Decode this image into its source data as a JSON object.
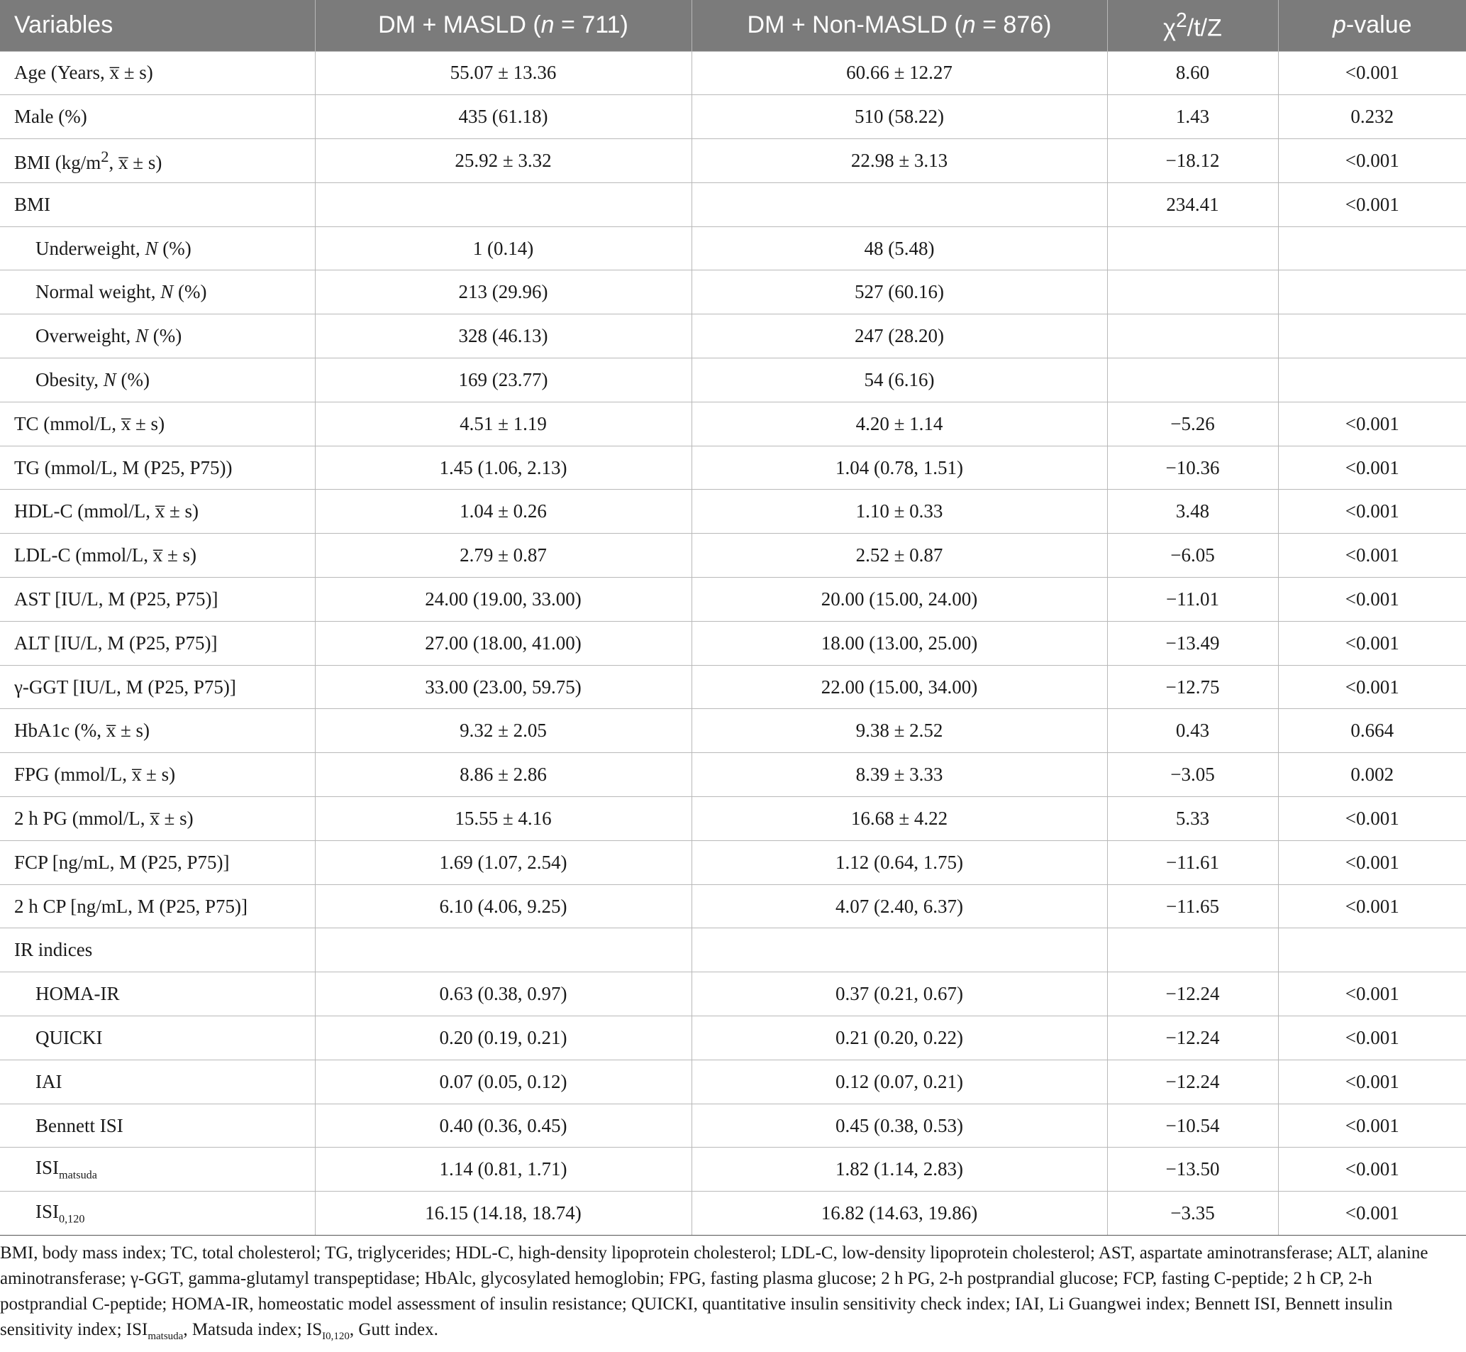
{
  "table": {
    "headers": {
      "variables": "Variables",
      "group1_prefix": "DM + MASLD (",
      "group1_n": "n",
      "group1_suffix": " = 711)",
      "group2_prefix": "DM + Non-MASLD (",
      "group2_n": "n",
      "group2_suffix": " = 876)",
      "stat_chi": "χ",
      "stat_sup": "2",
      "stat_rest": "/t/Z",
      "pvalue_p": "p",
      "pvalue_rest": "-value"
    },
    "rows": {
      "age": {
        "label": "Age (Years, x̅ ± s)",
        "masld": "55.07 ± 13.36",
        "non_masld": "60.66 ± 12.27",
        "stat": "8.60",
        "p": "<0.001"
      },
      "male": {
        "label": "Male (%)",
        "masld": "435 (61.18)",
        "non_masld": "510 (58.22)",
        "stat": "1.43",
        "p": "0.232"
      },
      "bmi_mean": {
        "label_pre": "BMI (kg/m",
        "label_sup": "2",
        "label_post": ", x̅ ± s)",
        "masld": "25.92 ± 3.32",
        "non_masld": "22.98 ± 3.13",
        "stat": "−18.12",
        "p": "<0.001"
      },
      "bmi_cat": {
        "label": "BMI",
        "masld": "",
        "non_masld": "",
        "stat": "234.41",
        "p": "<0.001"
      },
      "underweight": {
        "label_pre": "Underweight, ",
        "label_it": "N",
        "label_post": " (%)",
        "masld": "1 (0.14)",
        "non_masld": "48 (5.48)",
        "stat": "",
        "p": ""
      },
      "normal": {
        "label_pre": "Normal weight, ",
        "label_it": "N",
        "label_post": " (%)",
        "masld": "213 (29.96)",
        "non_masld": "527 (60.16)",
        "stat": "",
        "p": ""
      },
      "overweight": {
        "label_pre": "Overweight, ",
        "label_it": "N",
        "label_post": " (%)",
        "masld": "328 (46.13)",
        "non_masld": "247 (28.20)",
        "stat": "",
        "p": ""
      },
      "obesity": {
        "label_pre": "Obesity, ",
        "label_it": "N",
        "label_post": " (%)",
        "masld": "169 (23.77)",
        "non_masld": "54 (6.16)",
        "stat": "",
        "p": ""
      },
      "tc": {
        "label": "TC (mmol/L, x̅ ± s)",
        "masld": "4.51 ± 1.19",
        "non_masld": "4.20 ± 1.14",
        "stat": "−5.26",
        "p": "<0.001"
      },
      "tg": {
        "label": "TG (mmol/L, M (P25, P75))",
        "masld": "1.45 (1.06, 2.13)",
        "non_masld": "1.04 (0.78, 1.51)",
        "stat": "−10.36",
        "p": "<0.001"
      },
      "hdl": {
        "label": "HDL-C (mmol/L, x̅ ± s)",
        "masld": "1.04 ± 0.26",
        "non_masld": "1.10 ± 0.33",
        "stat": "3.48",
        "p": "<0.001"
      },
      "ldl": {
        "label": "LDL-C (mmol/L, x̅ ± s)",
        "masld": "2.79 ± 0.87",
        "non_masld": "2.52 ± 0.87",
        "stat": "−6.05",
        "p": "<0.001"
      },
      "ast": {
        "label": "AST [IU/L, M (P25, P75)]",
        "masld": "24.00 (19.00, 33.00)",
        "non_masld": "20.00 (15.00, 24.00)",
        "stat": "−11.01",
        "p": "<0.001"
      },
      "alt": {
        "label": "ALT [IU/L, M (P25, P75)]",
        "masld": "27.00 (18.00, 41.00)",
        "non_masld": "18.00 (13.00, 25.00)",
        "stat": "−13.49",
        "p": "<0.001"
      },
      "ggt": {
        "label": "γ-GGT [IU/L, M (P25, P75)]",
        "masld": "33.00 (23.00, 59.75)",
        "non_masld": "22.00 (15.00, 34.00)",
        "stat": "−12.75",
        "p": "<0.001"
      },
      "hba1c": {
        "label": "HbA1c (%, x̅ ± s)",
        "masld": "9.32 ± 2.05",
        "non_masld": "9.38 ± 2.52",
        "stat": "0.43",
        "p": "0.664"
      },
      "fpg": {
        "label": "FPG (mmol/L, x̅ ± s)",
        "masld": "8.86 ± 2.86",
        "non_masld": "8.39 ± 3.33",
        "stat": "−3.05",
        "p": "0.002"
      },
      "pg2h": {
        "label": "2 h PG (mmol/L, x̅ ± s)",
        "masld": "15.55 ± 4.16",
        "non_masld": "16.68 ± 4.22",
        "stat": "5.33",
        "p": "<0.001"
      },
      "fcp": {
        "label": "FCP [ng/mL, M (P25, P75)]",
        "masld": "1.69 (1.07, 2.54)",
        "non_masld": "1.12 (0.64, 1.75)",
        "stat": "−11.61",
        "p": "<0.001"
      },
      "cp2h": {
        "label": "2 h CP [ng/mL, M (P25, P75)]",
        "masld": "6.10 (4.06, 9.25)",
        "non_masld": "4.07 (2.40, 6.37)",
        "stat": "−11.65",
        "p": "<0.001"
      },
      "ir": {
        "label": "IR indices",
        "masld": "",
        "non_masld": "",
        "stat": "",
        "p": ""
      },
      "homa": {
        "label": "HOMA-IR",
        "masld": "0.63 (0.38, 0.97)",
        "non_masld": "0.37 (0.21, 0.67)",
        "stat": "−12.24",
        "p": "<0.001"
      },
      "quicki": {
        "label": "QUICKI",
        "masld": "0.20 (0.19, 0.21)",
        "non_masld": "0.21 (0.20, 0.22)",
        "stat": "−12.24",
        "p": "<0.001"
      },
      "iai": {
        "label": "IAI",
        "masld": "0.07 (0.05, 0.12)",
        "non_masld": "0.12 (0.07, 0.21)",
        "stat": "−12.24",
        "p": "<0.001"
      },
      "bennett": {
        "label": "Bennett ISI",
        "masld": "0.40 (0.36, 0.45)",
        "non_masld": "0.45 (0.38, 0.53)",
        "stat": "−10.54",
        "p": "<0.001"
      },
      "matsuda": {
        "label_pre": "ISI",
        "label_sub": "matsuda",
        "masld": "1.14 (0.81, 1.71)",
        "non_masld": "1.82 (1.14, 2.83)",
        "stat": "−13.50",
        "p": "<0.001"
      },
      "isi0120": {
        "label_pre": "ISI",
        "label_sub": "0,120",
        "masld": "16.15 (14.18, 18.74)",
        "non_masld": "16.82 (14.63, 19.86)",
        "stat": "−3.35",
        "p": "<0.001"
      }
    }
  },
  "footnote": {
    "part1": "BMI, body mass index; TC, total cholesterol; TG, triglycerides; HDL-C, high-density lipoprotein cholesterol; LDL-C, low-density lipoprotein cholesterol; AST, aspartate aminotransferase; ALT, alanine aminotransferase; γ-GGT, gamma-glutamyl transpeptidase; HbAlc, glycosylated hemoglobin; FPG, fasting plasma glucose; 2 h PG, 2-h postprandial glucose; FCP, fasting C-peptide; 2 h CP, 2-h postprandial C-peptide; HOMA-IR, homeostatic model assessment of insulin resistance; QUICKI, quantitative insulin sensitivity check index; IAI, Li Guangwei index; Bennett ISI, Bennett insulin sensitivity index; ISI",
    "sub1": "matsuda",
    "part2": ", Matsuda index; IS",
    "sub2": "I0,120",
    "part3": ", Gutt index."
  }
}
